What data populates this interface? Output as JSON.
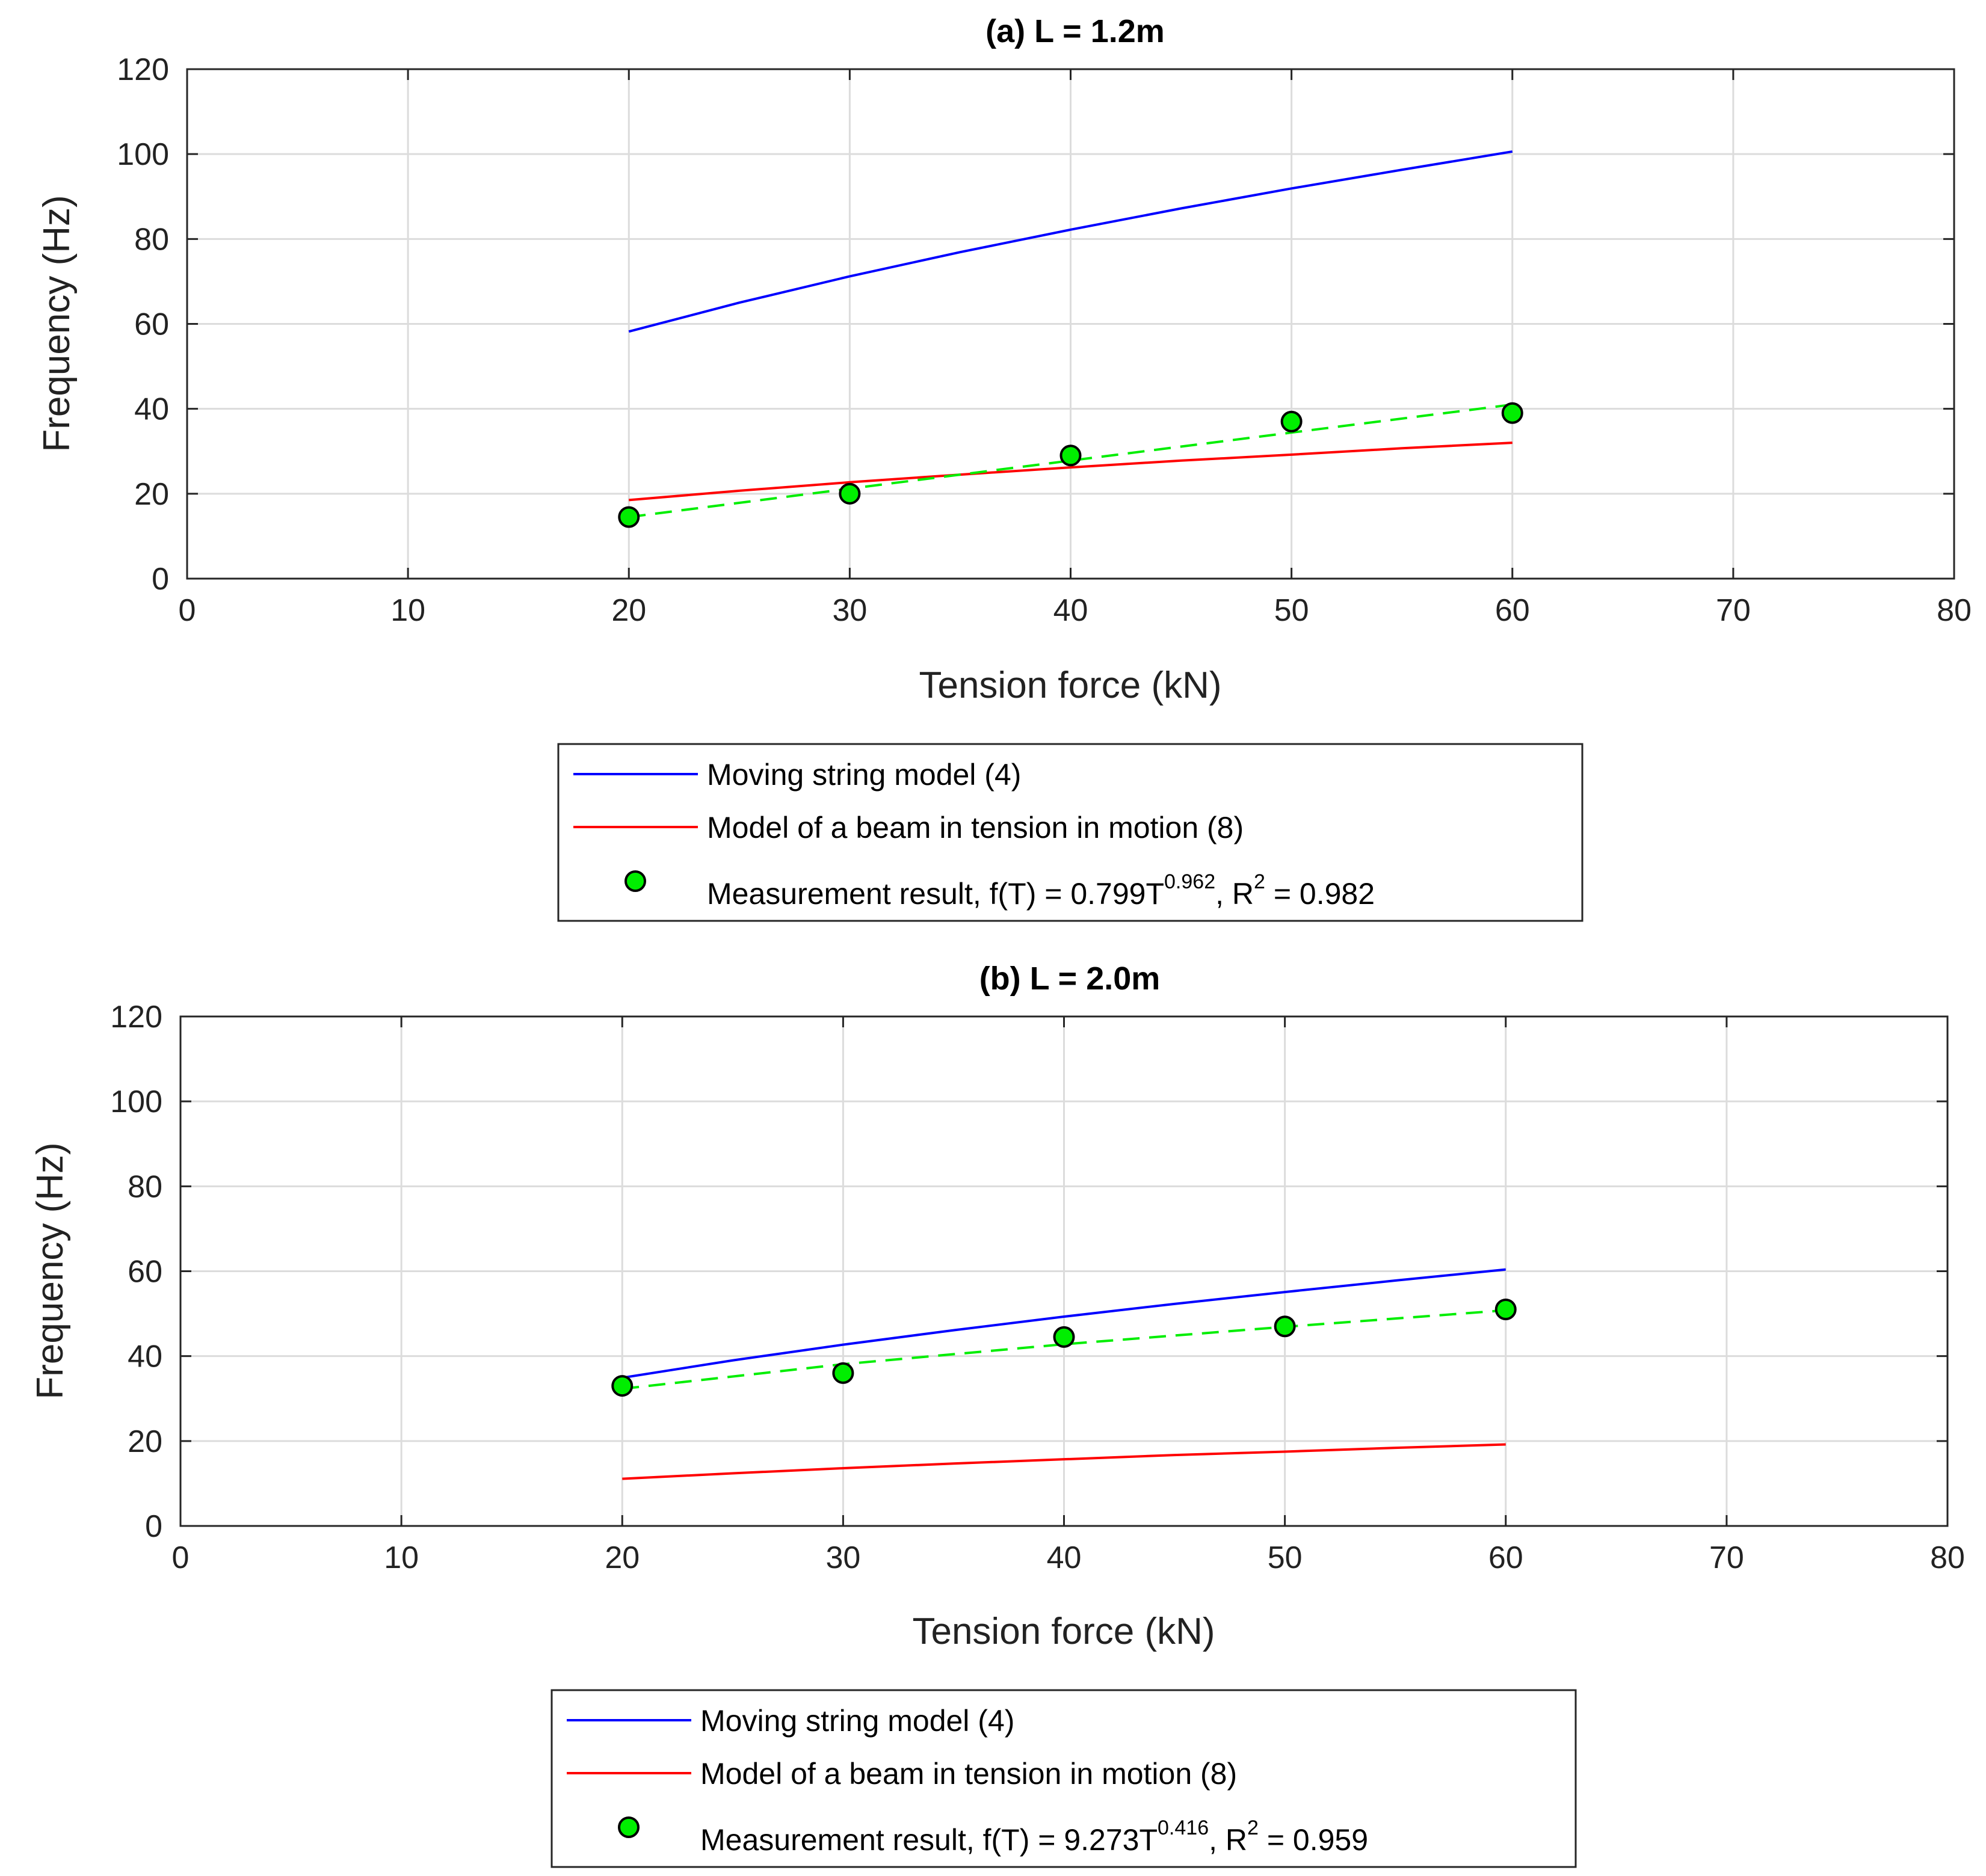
{
  "chart_data": [
    {
      "type": "line",
      "title": "(a) L = 1.2m",
      "xlabel": "Tension force (kN)",
      "ylabel": "Frequency (Hz)",
      "xlim": [
        0,
        80
      ],
      "ylim": [
        0,
        120
      ],
      "xticks": [
        "0",
        "10",
        "20",
        "30",
        "40",
        "50",
        "60",
        "70",
        "80"
      ],
      "yticks": [
        "0",
        "20",
        "40",
        "60",
        "80",
        "100",
        "120"
      ],
      "grid": true,
      "legend_position": "below",
      "series": [
        {
          "name": "Moving string model (4)",
          "style": "line",
          "color": "#0000ff",
          "x": [
            20,
            25,
            30,
            35,
            40,
            45,
            50,
            55,
            60
          ],
          "y": [
            58.2,
            65.0,
            71.2,
            76.9,
            82.2,
            87.2,
            91.9,
            96.3,
            100.6
          ]
        },
        {
          "name": "Model of a beam in tension in motion (8)",
          "style": "line",
          "color": "#ff0000",
          "x": [
            20,
            25,
            30,
            35,
            40,
            45,
            50,
            55,
            60
          ],
          "y": [
            18.5,
            20.7,
            22.7,
            24.5,
            26.2,
            27.8,
            29.2,
            30.7,
            32.0
          ]
        },
        {
          "name": "Measurement result",
          "legend_label": "Measurement result, f(T) = 0.799T",
          "legend_exponent": "0.962",
          "legend_r_label": ", R",
          "legend_r_exponent": "2",
          "legend_r_value": " = 0.982",
          "style": "marker",
          "color": "#00ee00",
          "x": [
            20,
            30,
            40,
            50,
            60
          ],
          "y": [
            14.5,
            20.0,
            29.0,
            37.0,
            39.0
          ]
        },
        {
          "name": "Measurement fit",
          "style": "dashed",
          "color": "#00ee00",
          "x": [
            20,
            30,
            40,
            50,
            60
          ],
          "y": [
            14.5,
            21.2,
            27.8,
            34.4,
            41.0
          ]
        }
      ]
    },
    {
      "type": "line",
      "title": "(b) L = 2.0m",
      "xlabel": "Tension force (kN)",
      "ylabel": "Frequency (Hz)",
      "xlim": [
        0,
        80
      ],
      "ylim": [
        0,
        120
      ],
      "xticks": [
        "0",
        "10",
        "20",
        "30",
        "40",
        "50",
        "60",
        "70",
        "80"
      ],
      "yticks": [
        "0",
        "20",
        "40",
        "60",
        "80",
        "100",
        "120"
      ],
      "grid": true,
      "legend_position": "below",
      "series": [
        {
          "name": "Moving string model (4)",
          "style": "line",
          "color": "#0000ff",
          "x": [
            20,
            25,
            30,
            35,
            40,
            45,
            50,
            55,
            60
          ],
          "y": [
            34.9,
            39.0,
            42.7,
            46.1,
            49.3,
            52.3,
            55.1,
            57.8,
            60.4
          ]
        },
        {
          "name": "Model of a beam in tension in motion (8)",
          "style": "line",
          "color": "#ff0000",
          "x": [
            20,
            25,
            30,
            35,
            40,
            45,
            50,
            55,
            60
          ],
          "y": [
            11.1,
            12.4,
            13.6,
            14.7,
            15.7,
            16.7,
            17.5,
            18.4,
            19.2
          ]
        },
        {
          "name": "Measurement result",
          "legend_label": "Measurement result, f(T) = 9.273T",
          "legend_exponent": "0.416",
          "legend_r_label": ", R",
          "legend_r_exponent": "2",
          "legend_r_value": " = 0.959",
          "style": "marker",
          "color": "#00ee00",
          "x": [
            20,
            30,
            40,
            50,
            60
          ],
          "y": [
            33.0,
            36.0,
            44.5,
            47.0,
            51.0
          ]
        },
        {
          "name": "Measurement fit",
          "style": "dashed",
          "color": "#00ee00",
          "x": [
            20,
            30,
            40,
            50,
            60
          ],
          "y": [
            32.3,
            38.1,
            42.8,
            46.9,
            50.8
          ]
        }
      ]
    }
  ]
}
